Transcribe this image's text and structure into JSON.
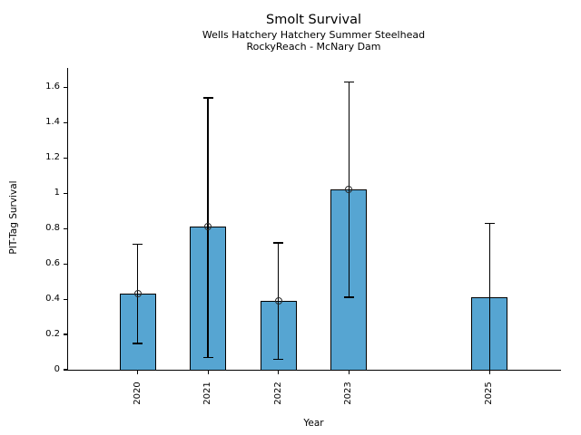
{
  "header": {
    "title": "Smolt Survival",
    "subtitle1": "Wells Hatchery Hatchery Summer Steelhead",
    "subtitle2": "RockyReach - McNary Dam"
  },
  "chart_data": {
    "type": "bar",
    "title": "Smolt Survival",
    "subtitles": [
      "Wells Hatchery Hatchery Summer Steelhead",
      "RockyReach - McNary Dam"
    ],
    "xlabel": "Year",
    "ylabel": "PIT-Tag Survival",
    "x": [
      2020,
      2021,
      2022,
      2023,
      2025
    ],
    "xtick_labels": [
      "2020",
      "2021",
      "2022",
      "2023",
      "2025"
    ],
    "values": [
      0.43,
      0.81,
      0.39,
      1.02,
      0.41
    ],
    "ci_low": [
      0.15,
      0.07,
      0.06,
      0.41,
      0.0
    ],
    "ci_high": [
      0.71,
      1.54,
      0.72,
      1.63,
      0.83
    ],
    "point_marker": [
      true,
      true,
      true,
      true,
      false
    ],
    "xlim": [
      2019,
      2026
    ],
    "ylim": [
      0,
      1.71
    ],
    "yticks": [
      0,
      0.2,
      0.4,
      0.6,
      0.8,
      1.0,
      1.2,
      1.4,
      1.6
    ],
    "ytick_labels": [
      "0",
      "0.2",
      "0.4",
      "0.6",
      "0.8",
      "1",
      "1.2",
      "1.4",
      "1.6"
    ],
    "xtick_rotation": 90,
    "grid": false,
    "legend": null,
    "bar_color": "#56a5d2",
    "bar_edge_color": "#000000",
    "error_color": "#000000",
    "marker_edge_color": "#2a2a2a",
    "background": "#ffffff"
  }
}
